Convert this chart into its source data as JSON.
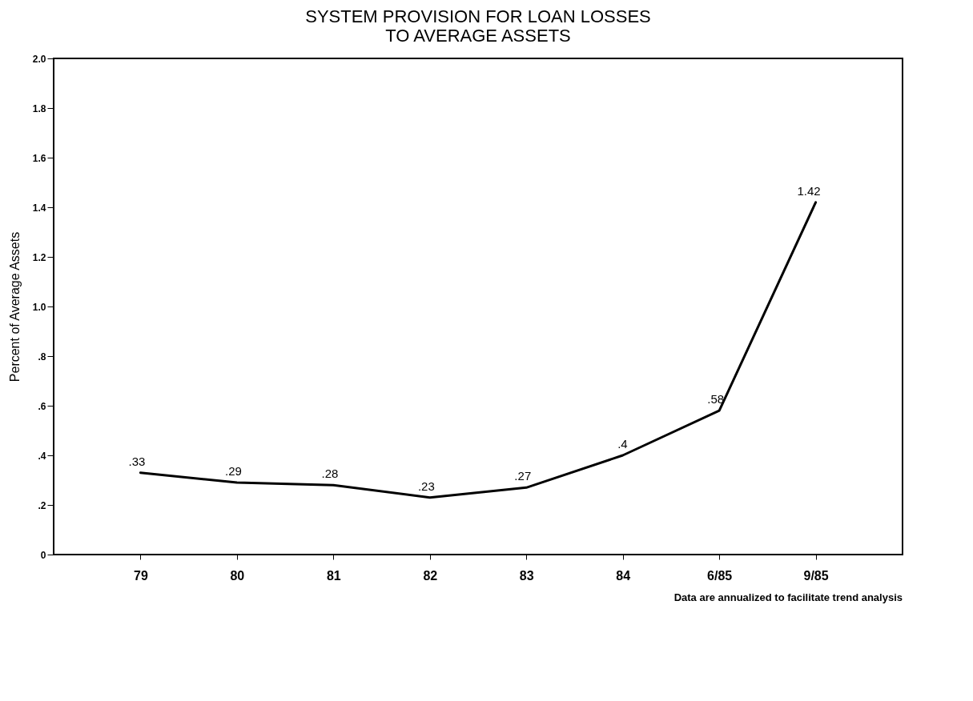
{
  "chart_data": {
    "type": "line",
    "title": "SYSTEM PROVISION FOR LOAN LOSSES\nTO AVERAGE ASSETS",
    "ylabel": "Percent of Average Assets",
    "categories": [
      "79",
      "80",
      "81",
      "82",
      "83",
      "84",
      "6/85",
      "9/85"
    ],
    "series": [
      {
        "color": "#000000",
        "values": [
          0.33,
          0.29,
          0.28,
          0.23,
          0.27,
          0.4,
          0.58,
          1.42
        ],
        "value_labels": [
          ".33",
          ".29",
          ".28",
          ".23",
          ".27",
          ".4",
          ".58",
          "1.42"
        ]
      }
    ],
    "ylim": [
      0,
      2.0
    ],
    "yticks": [
      0,
      {
        "value": 0.2,
        "label": ".2"
      },
      {
        "value": 0.4,
        "label": ".4"
      },
      {
        "value": 0.6,
        "label": ".6"
      },
      {
        "value": 0.8,
        "label": ".8"
      },
      {
        "value": 1.0,
        "label": "1.0"
      },
      {
        "value": 1.2,
        "label": "1.2"
      },
      {
        "value": 1.4,
        "label": "1.4"
      },
      {
        "value": 1.6,
        "label": "1.6"
      },
      {
        "value": 1.8,
        "label": "1.8"
      },
      {
        "value": 2.0,
        "label": "2.0"
      }
    ],
    "grid": false,
    "marker": "none",
    "line_style": "solid",
    "annotations": [
      "Data are annualized to facilitate trend analysis"
    ]
  }
}
